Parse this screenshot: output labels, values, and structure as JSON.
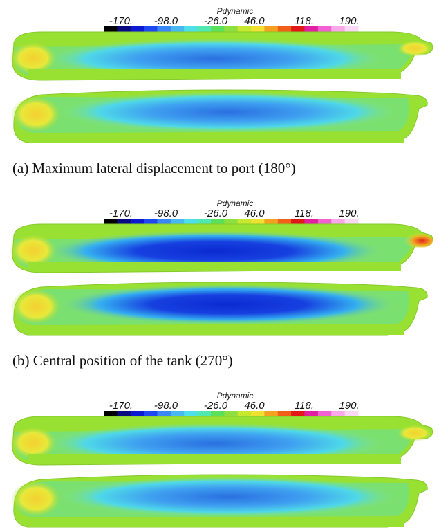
{
  "panels": [
    {
      "colorbar": {
        "title": "Pdynamic",
        "ticks": [
          "-170.",
          "-98.0",
          "-26.0",
          "46.0",
          "118.",
          "190."
        ]
      },
      "caption": "(a)  Maximum lateral displacement to port (180°)"
    },
    {
      "colorbar": {
        "title": "Pdynamic",
        "ticks": [
          "-170.",
          "-98.0",
          "-26.0",
          "46.0",
          "118.",
          "190."
        ]
      },
      "caption": "(b)  Central position of the tank (270°)"
    },
    {
      "colorbar": {
        "title": "Pdynamic",
        "ticks": [
          "-170.",
          "-98.0",
          "-26.0",
          "46.0",
          "118.",
          "190."
        ]
      }
    }
  ]
}
